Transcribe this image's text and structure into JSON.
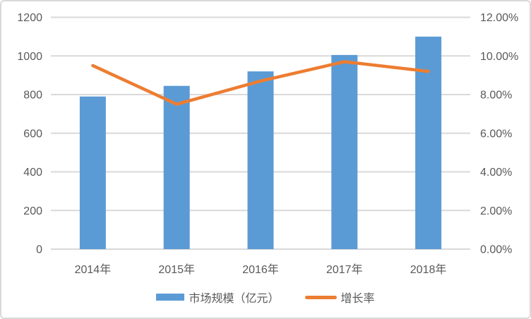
{
  "chart_data": {
    "type": "combo",
    "title": "",
    "categories": [
      "2014年",
      "2015年",
      "2016年",
      "2017年",
      "2018年"
    ],
    "series": [
      {
        "name": "市场规模（亿元）",
        "type": "bar",
        "axis": "left",
        "color": "#5B9BD5",
        "values": [
          790,
          845,
          920,
          1005,
          1100
        ]
      },
      {
        "name": "增长率",
        "type": "line",
        "axis": "right",
        "color": "#ED7D31",
        "format": "percent",
        "values": [
          9.5,
          7.5,
          8.7,
          9.7,
          9.2
        ]
      }
    ],
    "left_axis": {
      "min": 0,
      "max": 1200,
      "step": 200,
      "tick_labels": [
        "1200",
        "1000",
        "800",
        "600",
        "400",
        "200",
        "0"
      ],
      "tick_values": [
        1200,
        1000,
        800,
        600,
        400,
        200,
        0
      ]
    },
    "right_axis": {
      "min": 0,
      "max": 12,
      "step": 2,
      "tick_labels": [
        "12.00%",
        "10.00%",
        "8.00%",
        "6.00%",
        "4.00%",
        "2.00%",
        "0.00%"
      ],
      "tick_values": [
        12,
        10,
        8,
        6,
        4,
        2,
        0
      ]
    },
    "grid": true,
    "legend_position": "bottom",
    "colors": {
      "bar": "#5B9BD5",
      "line": "#ED7D31",
      "grid": "#D9D9D9",
      "axis_text": "#595959",
      "frame_border": "#D9D9D9",
      "background": "#FFFFFF"
    }
  }
}
